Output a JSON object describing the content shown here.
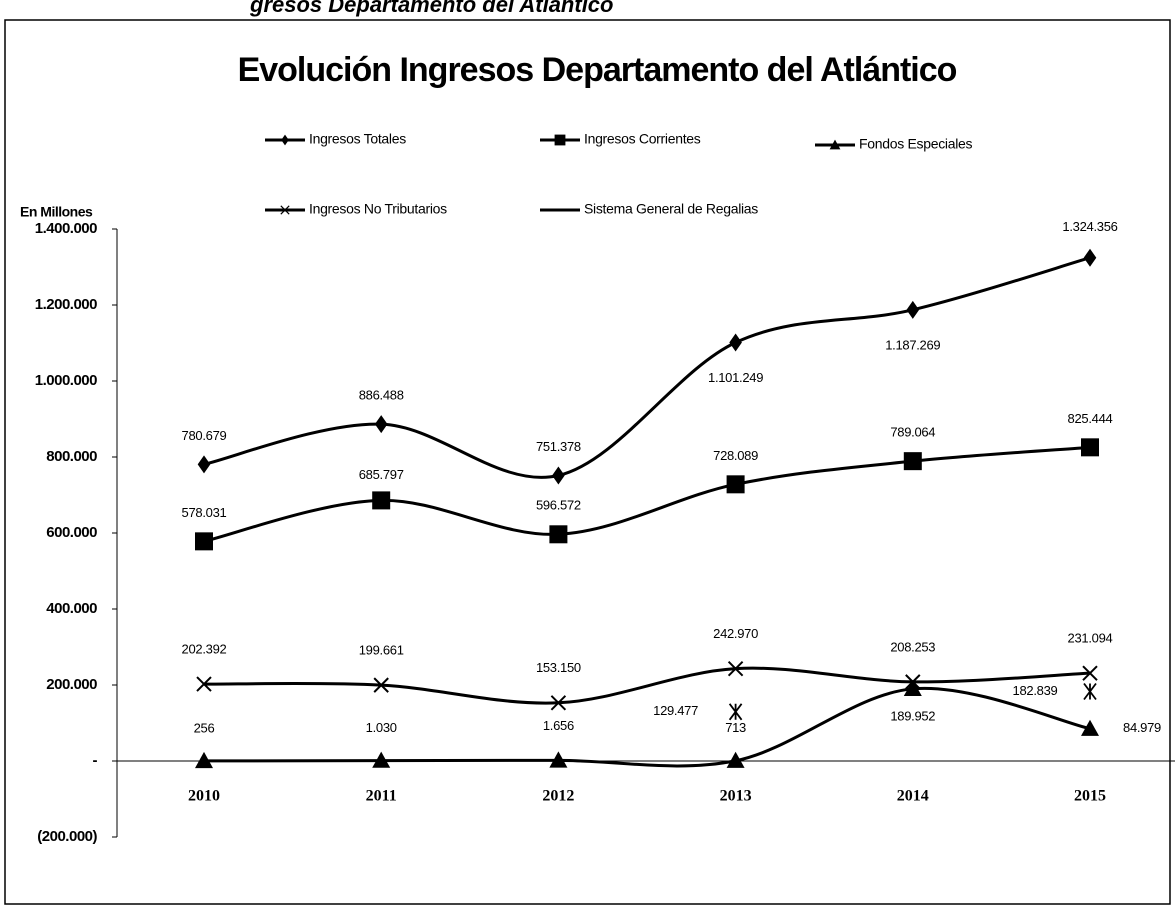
{
  "chart_data": {
    "type": "line",
    "caption": "gresos Departamento del Atlántico",
    "title": "Evolución Ingresos Departamento del Atlántico",
    "y_axis_label": "En Millones",
    "categories": [
      "2010",
      "2011",
      "2012",
      "2013",
      "2014",
      "2015"
    ],
    "ylim": [
      -200000,
      1400000
    ],
    "yticks": [
      {
        "value": -200000,
        "label": "(200.000)"
      },
      {
        "value": 0,
        "label": "-"
      },
      {
        "value": 200000,
        "label": "200.000"
      },
      {
        "value": 400000,
        "label": "400.000"
      },
      {
        "value": 600000,
        "label": "600.000"
      },
      {
        "value": 800000,
        "label": "800.000"
      },
      {
        "value": 1000000,
        "label": "1.000.000"
      },
      {
        "value": 1200000,
        "label": "1.200.000"
      },
      {
        "value": 1400000,
        "label": "1.400.000"
      }
    ],
    "grid": false,
    "smooth": true,
    "series": [
      {
        "name": "Ingresos Totales",
        "color": "#000000",
        "marker": "diamond",
        "values": [
          780679,
          886488,
          751378,
          1101249,
          1187269,
          1324356
        ],
        "value_labels": [
          "780.679",
          "886.488",
          "751.378",
          "1.101.249",
          "1.187.269",
          "1.324.356"
        ]
      },
      {
        "name": "Ingresos Corrientes",
        "color": "#000000",
        "marker": "square",
        "values": [
          578031,
          685797,
          596572,
          728089,
          789064,
          825444
        ],
        "value_labels": [
          "578.031",
          "685.797",
          "596.572",
          "728.089",
          "789.064",
          "825.444"
        ]
      },
      {
        "name": "Fondos Especiales",
        "color": "#000000",
        "marker": "triangle",
        "values": [
          256,
          1030,
          1656,
          713,
          189952,
          84979
        ],
        "value_labels": [
          "256",
          "1.030",
          "1.656",
          "713",
          "189.952",
          "84.979"
        ]
      },
      {
        "name": "Ingresos No Tributarios",
        "color": "#000000",
        "marker": "x",
        "values": [
          202392,
          199661,
          153150,
          242970,
          208253,
          231094
        ],
        "value_labels": [
          "202.392",
          "199.661",
          "153.150",
          "242.970",
          "208.253",
          "231.094"
        ]
      },
      {
        "name": "Sistema General de Regalias",
        "color": "#000000",
        "marker": "star",
        "values": [
          null,
          null,
          null,
          129477,
          null,
          182839
        ],
        "value_labels": [
          null,
          null,
          null,
          "129.477",
          null,
          "182.839"
        ]
      }
    ]
  }
}
